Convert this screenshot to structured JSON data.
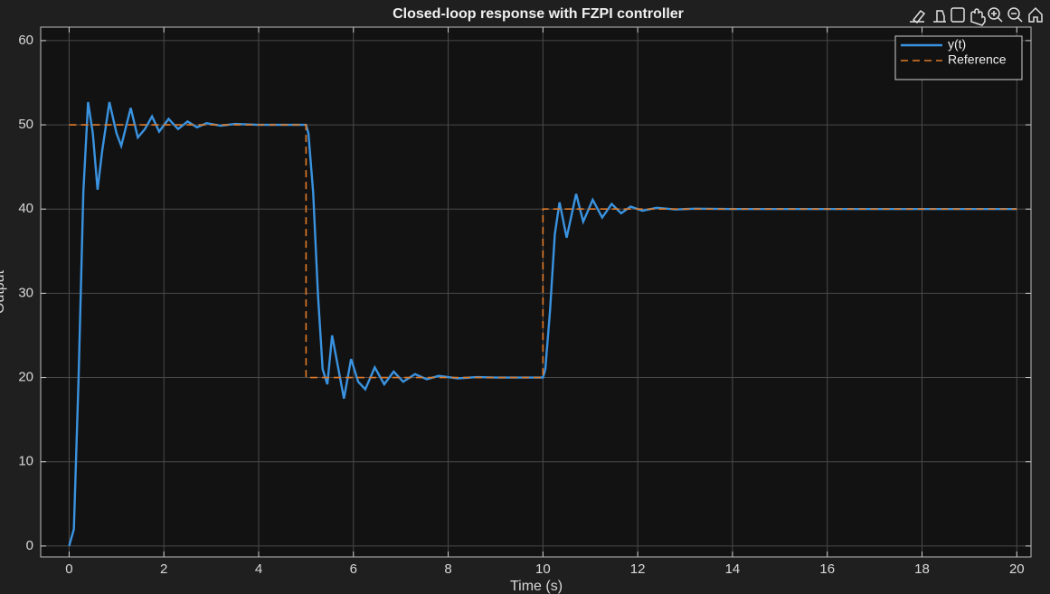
{
  "chart_data": {
    "type": "line",
    "title": "Closed-loop response with FZPI controller",
    "xlabel": "Time (s)",
    "ylabel": "Output",
    "xlim": [
      -0.6,
      20.3
    ],
    "ylim": [
      -1.3,
      61.6
    ],
    "xticks": [
      0,
      2,
      4,
      6,
      8,
      10,
      12,
      14,
      16,
      18,
      20
    ],
    "yticks": [
      0,
      10,
      20,
      30,
      40,
      50,
      60
    ],
    "grid": true,
    "legend": "upper right",
    "series": [
      {
        "name": "y(t)",
        "color": "#3a93e0",
        "style": "solid",
        "x": [
          0,
          0.1,
          0.2,
          0.3,
          0.4,
          0.5,
          0.6,
          0.7,
          0.85,
          1.0,
          1.1,
          1.3,
          1.45,
          1.6,
          1.75,
          1.9,
          2.1,
          2.3,
          2.5,
          2.7,
          2.9,
          3.2,
          3.5,
          4,
          5,
          5.05,
          5.15,
          5.25,
          5.35,
          5.45,
          5.55,
          5.65,
          5.8,
          5.95,
          6.1,
          6.25,
          6.45,
          6.65,
          6.85,
          7.05,
          7.3,
          7.55,
          7.8,
          8.2,
          8.6,
          9,
          10,
          10.05,
          10.15,
          10.25,
          10.35,
          10.5,
          10.7,
          10.85,
          11.05,
          11.25,
          11.45,
          11.65,
          11.85,
          12.1,
          12.4,
          12.8,
          13.2,
          14,
          20
        ],
        "values": [
          0,
          2,
          20,
          42,
          52.7,
          49,
          42.3,
          47,
          52.7,
          49,
          47.5,
          52,
          48.5,
          49.5,
          51,
          49.2,
          50.7,
          49.5,
          50.4,
          49.7,
          50.2,
          49.9,
          50.1,
          50,
          50,
          49,
          42,
          30,
          21,
          19.2,
          25,
          22,
          17.5,
          22.2,
          19.5,
          18.6,
          21.2,
          19.2,
          20.7,
          19.5,
          20.4,
          19.8,
          20.2,
          19.9,
          20.05,
          20,
          20,
          21,
          28,
          37,
          40.8,
          36.6,
          41.8,
          38.5,
          41.1,
          39,
          40.6,
          39.5,
          40.3,
          39.8,
          40.15,
          39.95,
          40.05,
          40,
          40
        ]
      },
      {
        "name": "Reference",
        "color": "#e07b29",
        "style": "dashed",
        "x": [
          0,
          5,
          5,
          10,
          10,
          20
        ],
        "values": [
          50,
          50,
          20,
          20,
          40,
          40
        ]
      }
    ]
  }
}
